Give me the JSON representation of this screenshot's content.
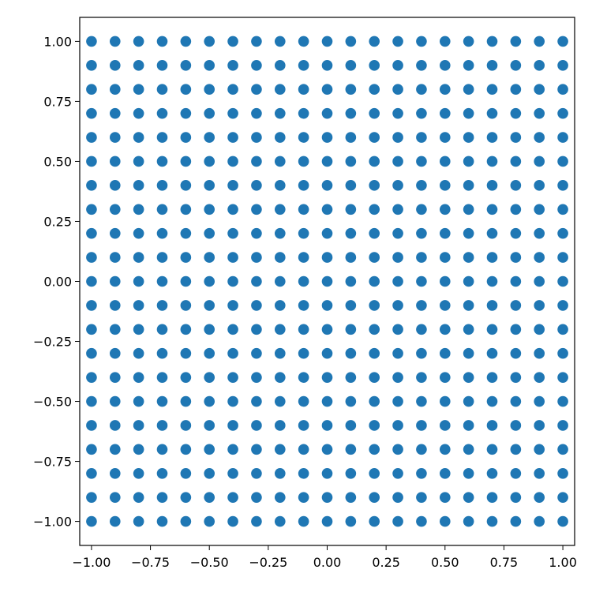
{
  "chart_data": {
    "type": "scatter",
    "title": "",
    "xlabel": "",
    "ylabel": "",
    "xlim": [
      -1.05,
      1.05
    ],
    "ylim": [
      -1.1,
      1.1
    ],
    "grid": false,
    "marker_color": "#1f77b4",
    "x": [
      -1.0,
      -0.9,
      -0.8,
      -0.7,
      -0.6,
      -0.5,
      -0.4,
      -0.3,
      -0.2,
      -0.1,
      0.0,
      0.1,
      0.2,
      0.3,
      0.4,
      0.5,
      0.6,
      0.7,
      0.8,
      0.9,
      1.0
    ],
    "y": [
      -1.0,
      -0.9,
      -0.8,
      -0.7,
      -0.6,
      -0.5,
      -0.4,
      -0.3,
      -0.2,
      -0.1,
      0.0,
      0.1,
      0.2,
      0.3,
      0.4,
      0.5,
      0.6,
      0.7,
      0.8,
      0.9,
      1.0
    ],
    "grid_description": "points at every (x, y) pair from the x and y arrays",
    "x_ticks": [
      -1.0,
      -0.75,
      -0.5,
      -0.25,
      0.0,
      0.25,
      0.5,
      0.75,
      1.0
    ],
    "x_tick_labels": [
      "−1.00",
      "−0.75",
      "−0.50",
      "−0.25",
      "0.00",
      "0.25",
      "0.50",
      "0.75",
      "1.00"
    ],
    "y_ticks": [
      -1.0,
      -0.75,
      -0.5,
      -0.25,
      0.0,
      0.25,
      0.5,
      0.75,
      1.0
    ],
    "y_tick_labels": [
      "−1.00",
      "−0.75",
      "−0.50",
      "−0.25",
      "0.00",
      "0.25",
      "0.50",
      "0.75",
      "1.00"
    ]
  }
}
